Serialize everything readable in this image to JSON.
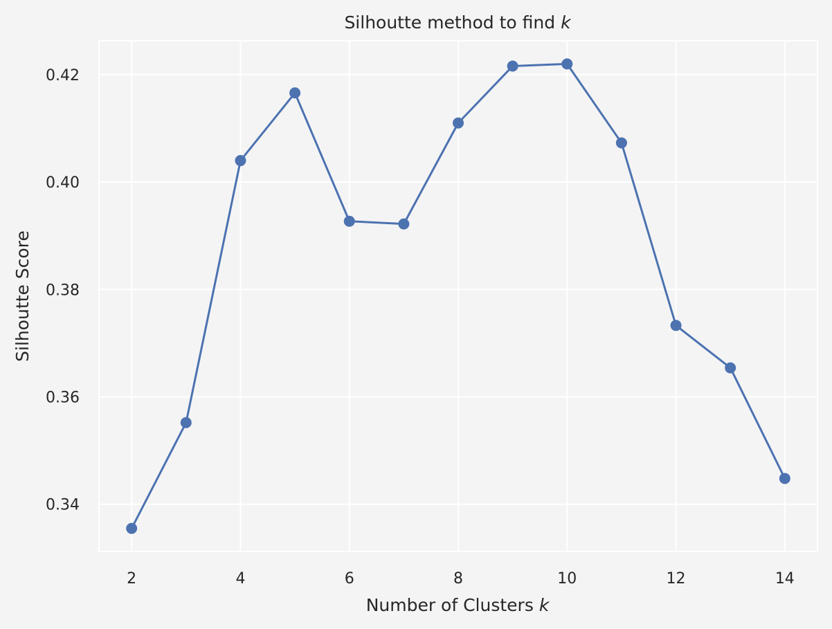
{
  "chart_data": {
    "type": "line",
    "title": "Silhoutte method to find",
    "title_var": "k",
    "xlabel": "Number of Clusters",
    "xlabel_var": "k",
    "ylabel": "Silhoutte Score",
    "x": [
      2,
      3,
      4,
      5,
      6,
      7,
      8,
      9,
      10,
      11,
      12,
      13,
      14
    ],
    "series": [
      {
        "values": [
          0.3355,
          0.3552,
          0.404,
          0.4166,
          0.3927,
          0.3922,
          0.411,
          0.4216,
          0.422,
          0.4073,
          0.3733,
          0.3654,
          0.3448
        ]
      }
    ],
    "xlim": [
      1.4,
      14.6
    ],
    "ylim": [
      0.3312,
      0.4263
    ],
    "xticks": [
      2,
      4,
      6,
      8,
      10,
      12,
      14
    ],
    "xtick_labels": [
      "2",
      "4",
      "6",
      "8",
      "10",
      "12",
      "14"
    ],
    "yticks": [
      0.34,
      0.36,
      0.38,
      0.4,
      0.42
    ],
    "ytick_labels": [
      "0.34",
      "0.36",
      "0.38",
      "0.40",
      "0.42"
    ],
    "grid": true,
    "markers": true,
    "colors": {
      "line": "#4c72b0",
      "background": "#f4f4f5",
      "grid": "#ffffff",
      "text": "#262626"
    }
  }
}
